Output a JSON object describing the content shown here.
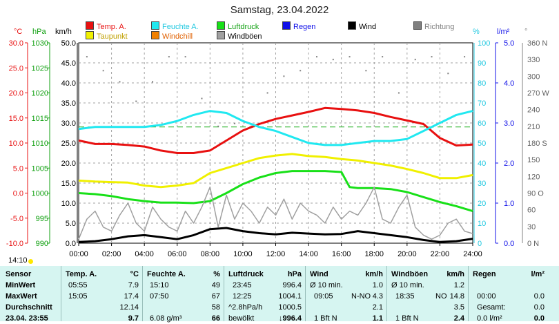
{
  "title": "Samstag, 23.04.2022",
  "legend": [
    {
      "label": "Temp. A.",
      "color": "#e81010",
      "text_color": "#e81010"
    },
    {
      "label": "Feuchte A.",
      "color": "#20e8f0",
      "text_color": "#20c8e0"
    },
    {
      "label": "Luftdruck",
      "color": "#18e018",
      "text_color": "#10a010"
    },
    {
      "label": "Regen",
      "color": "#1010e8",
      "text_color": "#1010e8"
    },
    {
      "label": "Wind",
      "color": "#000000",
      "text_color": "#000000"
    },
    {
      "label": "Richtung",
      "color": "#808080",
      "text_color": "#808080"
    },
    {
      "label": "Taupunkt",
      "color": "#f0f000",
      "text_color": "#c0a000"
    },
    {
      "label": "Windchill",
      "color": "#f08000",
      "text_color": "#e06000"
    },
    {
      "label": "Windböen",
      "color": "#a0a0a0",
      "text_color": "#000000"
    }
  ],
  "axis_units": {
    "temp": "°C",
    "pressure": "hPa",
    "wind": "km/h",
    "humidity": "%",
    "rain": "l/m²",
    "direction": "°"
  },
  "chart_data": {
    "type": "line",
    "x_ticks": [
      "00:00",
      "02:00",
      "04:00",
      "06:00",
      "08:00",
      "10:00",
      "12:00",
      "14:00",
      "16:00",
      "18:00",
      "20:00",
      "22:00",
      "24:00"
    ],
    "axes": {
      "temp_ticks": [
        "30.0",
        "25.0",
        "20.0",
        "15.0",
        "10.0",
        "5.0",
        "0.0",
        "-5.0",
        "-10.0"
      ],
      "pressure_ticks": [
        "1030",
        "1025",
        "1020",
        "1015",
        "1010",
        "1005",
        "1000",
        "995",
        "990"
      ],
      "wind_ticks": [
        "50.0",
        "45.0",
        "40.0",
        "35.0",
        "30.0",
        "25.0",
        "20.0",
        "15.0",
        "10.0",
        "5.0",
        "0.0"
      ],
      "humidity_ticks": [
        "100",
        "90",
        "80",
        "70",
        "60",
        "50",
        "40",
        "30",
        "20",
        "10",
        "0"
      ],
      "rain_ticks": [
        "5.0",
        "4.0",
        "3.0",
        "2.0",
        "1.0",
        "0.0"
      ],
      "direction_ticks": [
        "360 N",
        "330",
        "300",
        "270 W",
        "240",
        "210",
        "180 S",
        "150",
        "120",
        "90 O",
        "60",
        "30",
        "0 N"
      ],
      "temp_range": [
        -10,
        30
      ],
      "wind_range": [
        0,
        50
      ],
      "humidity_range": [
        0,
        100
      ],
      "rain_range": [
        0,
        5
      ],
      "direction_range": [
        0,
        360
      ],
      "pressure_range": [
        990,
        1030
      ]
    },
    "series": [
      {
        "name": "Temp. A.",
        "axis": "temp",
        "color": "#e81010",
        "x": [
          0,
          1,
          2,
          3,
          4,
          5,
          6,
          7,
          8,
          9,
          10,
          11,
          12,
          13,
          14,
          15,
          16,
          17,
          18,
          19,
          20,
          21,
          22,
          23,
          24
        ],
        "values": [
          10.5,
          9.8,
          9.8,
          9.6,
          9.3,
          8.5,
          8.0,
          8.0,
          8.5,
          10.5,
          12.5,
          13.8,
          14.8,
          15.5,
          16.2,
          17.0,
          16.8,
          16.5,
          16.0,
          15.2,
          14.5,
          13.8,
          11.0,
          9.5,
          9.7
        ]
      },
      {
        "name": "Feuchte A.",
        "axis": "humidity",
        "color": "#20e8f0",
        "x": [
          0,
          1,
          2,
          3,
          4,
          5,
          6,
          7,
          8,
          9,
          10,
          11,
          12,
          13,
          14,
          15,
          16,
          17,
          18,
          19,
          20,
          21,
          22,
          23,
          24
        ],
        "values": [
          57,
          58,
          58,
          58,
          58,
          59,
          61,
          64,
          66,
          65,
          61,
          58,
          56,
          53,
          50,
          49,
          49,
          50,
          51,
          51,
          52,
          56,
          60,
          64,
          66
        ]
      },
      {
        "name": "Taupunkt",
        "axis": "temp",
        "color": "#f0f000",
        "x": [
          0,
          1,
          2,
          3,
          4,
          5,
          6,
          7,
          8,
          9,
          10,
          11,
          12,
          13,
          14,
          15,
          16,
          17,
          18,
          19,
          20,
          21,
          22,
          23,
          24
        ],
        "values": [
          2.5,
          2.3,
          2.2,
          2.1,
          1.5,
          1.2,
          1.5,
          2.0,
          4.0,
          5.0,
          6.0,
          7.0,
          7.5,
          7.8,
          7.4,
          7.2,
          6.8,
          6.5,
          6.0,
          5.5,
          4.8,
          4.0,
          3.0,
          3.0,
          3.6
        ]
      },
      {
        "name": "Luftdruck",
        "axis": "pressure",
        "color": "#18e018",
        "x": [
          0,
          1,
          2,
          3,
          4,
          5,
          6,
          7,
          8,
          9,
          10,
          11,
          12,
          13,
          14,
          15,
          16,
          16.5,
          17,
          18,
          19,
          20,
          21,
          22,
          23,
          24
        ],
        "values": [
          1000,
          999.8,
          999.4,
          998.8,
          998.4,
          998.1,
          998.1,
          998.0,
          998.4,
          1000.0,
          1001.8,
          1003.1,
          1004.0,
          1004.4,
          1004.4,
          1004.4,
          1004.2,
          1001.2,
          1001.0,
          1001.0,
          1000.8,
          1000.2,
          999.2,
          998.2,
          997.4,
          996.4
        ]
      },
      {
        "name": "Wind",
        "axis": "wind",
        "color": "#000000",
        "x": [
          0,
          1,
          2,
          3,
          4,
          5,
          6,
          7,
          8,
          9,
          10,
          11,
          12,
          13,
          14,
          15,
          16,
          17,
          18,
          19,
          20,
          21,
          22,
          23,
          24
        ],
        "values": [
          0.3,
          0.5,
          1.0,
          1.7,
          2.0,
          1.5,
          1.0,
          2.0,
          3.5,
          3.8,
          3.0,
          2.5,
          2.2,
          2.6,
          2.4,
          2.2,
          2.3,
          3.0,
          2.5,
          2.0,
          1.5,
          0.8,
          0.3,
          0.5,
          1.1
        ]
      },
      {
        "name": "Windböen",
        "axis": "wind",
        "color": "#a0a0a0",
        "x": [
          0,
          0.5,
          1,
          1.5,
          2,
          2.5,
          3,
          3.5,
          4,
          4.5,
          5,
          5.5,
          6,
          6.5,
          7,
          7.5,
          8,
          8.5,
          9,
          9.5,
          10,
          10.5,
          11,
          11.5,
          12,
          12.5,
          13,
          13.5,
          14,
          14.5,
          15,
          15.5,
          16,
          16.5,
          17,
          17.5,
          18,
          18.5,
          19,
          19.5,
          20,
          20.5,
          21,
          21.5,
          22,
          22.5,
          23,
          23.5,
          24
        ],
        "values": [
          1,
          6,
          8,
          4,
          3,
          7,
          10,
          5,
          3,
          9,
          6,
          4,
          3,
          8,
          5,
          9,
          14,
          4,
          12,
          6,
          10,
          8,
          5,
          9,
          7,
          11,
          6,
          10,
          8,
          7,
          5,
          9,
          6,
          8,
          7,
          10,
          14,
          6,
          5,
          9,
          12,
          4,
          2,
          1,
          2,
          5,
          6,
          3,
          2.4
        ]
      }
    ],
    "direction_points": {
      "axis": "direction",
      "color": "#808080",
      "x": [
        0.5,
        1.5,
        2.5,
        3.5,
        4.5,
        5.5,
        6.5,
        7.5,
        8.5,
        9.5,
        10.5,
        11.5,
        12.5,
        13.5,
        14.5,
        15.5,
        16.5,
        17.5,
        18.5,
        19.5,
        20.5,
        21.5,
        22.5,
        23.5
      ],
      "values": [
        335,
        310,
        290,
        255,
        290,
        335,
        335,
        260,
        210,
        215,
        210,
        270,
        300,
        310,
        335,
        330,
        335,
        310,
        335,
        270,
        330,
        335,
        305,
        335
      ]
    },
    "threshold_line": {
      "axis": "humidity",
      "value": 58,
      "color": "#20b020",
      "style": "dashed"
    }
  },
  "stats": {
    "time_marker": "14:10",
    "labels": {
      "sensor": "Sensor",
      "min": "MinWert",
      "max": "MaxWert",
      "avg": "Durchschnitt",
      "current": "23.04. 23:55"
    },
    "temp": {
      "header": "Temp. A.",
      "unit": "°C",
      "min_time": "05:55",
      "min": "7.9",
      "max_time": "15:05",
      "max": "17.4",
      "avg": "12.14",
      "current": "9.7"
    },
    "humidity": {
      "header": "Feuchte A.",
      "unit": "%",
      "min_time": "15:10",
      "min": "49",
      "max_time": "07:50",
      "max": "67",
      "avg": "58",
      "current_extra": "6.08 g/m³",
      "current": "66"
    },
    "pressure": {
      "header": "Luftdruck",
      "unit": "hPa",
      "min_time": "23:45",
      "min": "996.4",
      "max_time": "12:25",
      "max": "1004.1",
      "avg_label": "^2.8hPa/h",
      "avg": "1000.5",
      "current_label": "bewölkt",
      "current": "↓996.4"
    },
    "wind": {
      "header": "Wind",
      "unit": "km/h",
      "min_label": "Ø 10 min.",
      "min": "1.0",
      "max_time": "09:05",
      "max_dir": "N-NO",
      "max": "4.3",
      "avg": "2.1",
      "current_label": "1 Bft N",
      "current": "1.1"
    },
    "gusts": {
      "header": "Windböen",
      "unit": "km/h",
      "min_label": "Ø 10 min.",
      "min": "1.2",
      "max_time": "18:35",
      "max_dir": "NO",
      "max": "14.8",
      "avg": "3.5",
      "current_label": "1 Bft N",
      "current": "2.4"
    },
    "rain": {
      "header": "Regen",
      "unit": "l/m²",
      "max_time": "00:00",
      "max": "0.0",
      "avg_label": "Gesamt:",
      "avg": "0.0",
      "current_label": "0.0 l/m²",
      "current": "0.0"
    }
  }
}
